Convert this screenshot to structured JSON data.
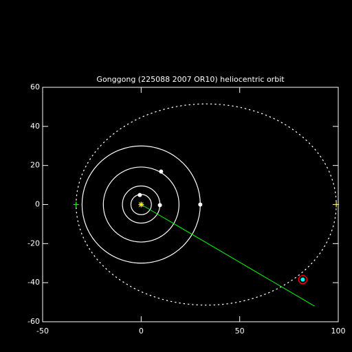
{
  "chart_data": {
    "type": "orbit",
    "title": "Gonggong (225088 2007 OR10) heliocentric orbit",
    "xlim": [
      -50,
      100
    ],
    "ylim": [
      -60,
      60
    ],
    "xticks": [
      -50,
      0,
      50,
      100
    ],
    "yticks": [
      -60,
      -40,
      -20,
      0,
      20,
      40,
      60
    ],
    "axis_color": "#ffffff",
    "sun": {
      "x": 0,
      "y": 0,
      "color": "#ffff00"
    },
    "planet_orbits": {
      "radii": [
        5.2,
        9.5,
        19.2,
        30
      ],
      "color": "#ffffff"
    },
    "planets": {
      "x": [
        -0.7,
        9.5,
        10.1,
        30
      ],
      "y": [
        4.9,
        -0.3,
        16.9,
        0
      ],
      "color": "#ffffff"
    },
    "object_orbit": {
      "center_x": 33,
      "center_y": 0,
      "semi_x": 66,
      "semi_y": 51.5,
      "color": "#ffffff"
    },
    "perihelion": {
      "x": -33,
      "y": 0,
      "color": "#00ff00"
    },
    "aphelion": {
      "x": 99,
      "y": 0,
      "color": "#ffff00"
    },
    "object": {
      "x": 82,
      "y": -38.4,
      "color": "#00ffff",
      "ring_color": "#ff0000"
    },
    "direction_line": {
      "x": [
        0,
        88
      ],
      "y": [
        0,
        -52
      ],
      "color": "#00ff00"
    }
  }
}
